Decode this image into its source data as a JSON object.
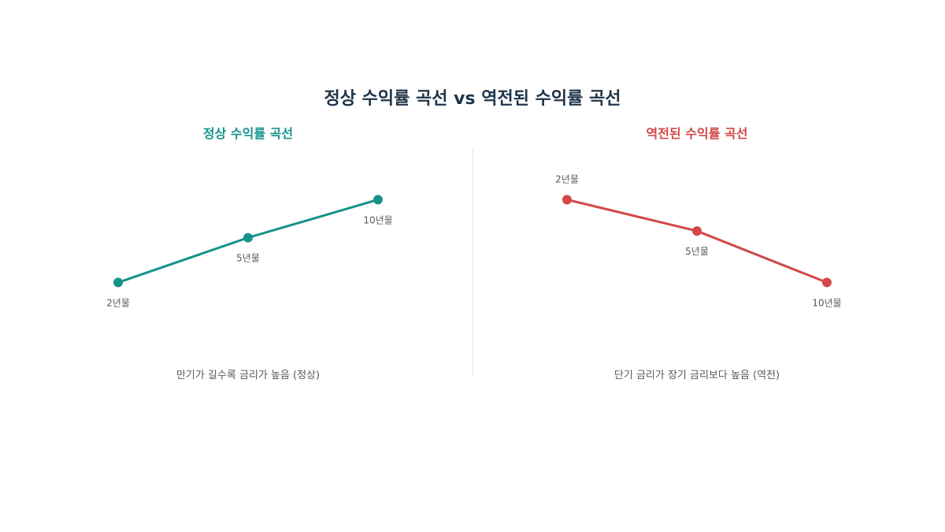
{
  "title": "정상 수익률 곡선 vs 역전된 수익률 곡선",
  "colors": {
    "title": "#1e3448",
    "normal": "#15938b",
    "inverted": "#d24848",
    "label": "#555a60"
  },
  "chart_data": [
    {
      "type": "line",
      "title": "정상 수익률 곡선",
      "categories": [
        "2년물",
        "5년물",
        "10년물"
      ],
      "values": [
        2.0,
        3.0,
        3.85
      ],
      "ylim": [
        0,
        5
      ],
      "caption": "만기가 길수록 금리가 높음 (정상)",
      "color": "#15938b",
      "grid": false,
      "axes": false
    },
    {
      "type": "line",
      "title": "역전된 수익률 곡선",
      "categories": [
        "2년물",
        "5년물",
        "10년물"
      ],
      "values": [
        3.85,
        3.15,
        2.0
      ],
      "ylim": [
        0,
        5
      ],
      "caption": "단기 금리가 장기 금리보다 높음 (역전)",
      "color": "#d24848",
      "grid": false,
      "axes": false
    }
  ]
}
